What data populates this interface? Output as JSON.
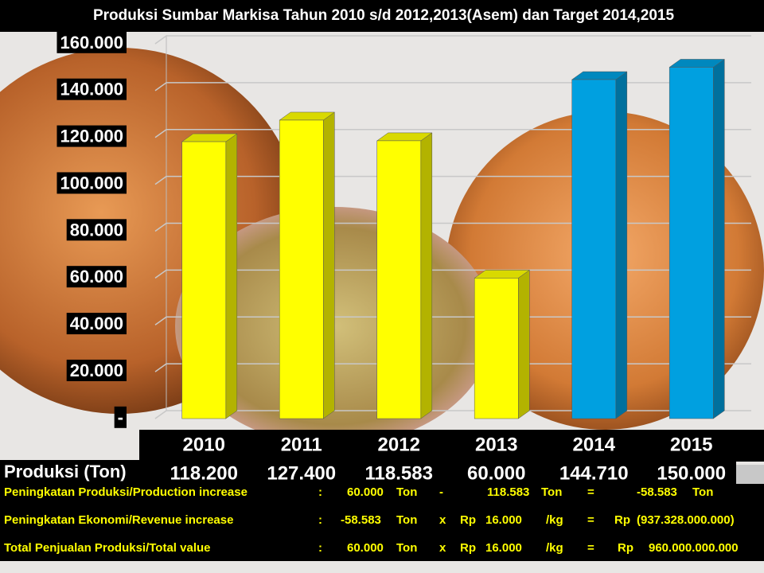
{
  "chart_data": {
    "type": "bar3d",
    "title": "Produksi Sumbar Markisa Tahun 2010 s/d 2012,2013(Asem)  dan Target  2014,2015",
    "categories": [
      "2010",
      "2011",
      "2012",
      "2013",
      "2014",
      "2015"
    ],
    "values": [
      118200,
      127400,
      118583,
      60000,
      144710,
      150000
    ],
    "value_labels": [
      "118.200",
      "127.400",
      "118.583",
      "60.000",
      "144.710",
      "150.000"
    ],
    "colors": [
      "#ffff00",
      "#ffff00",
      "#ffff00",
      "#ffff00",
      "#00a0e0",
      "#00a0e0"
    ],
    "row_label": "Produksi (Ton)",
    "ylim": [
      0,
      160000
    ],
    "yticks": [
      {
        "value": 0,
        "label": "-"
      },
      {
        "value": 20000,
        "label": "20.000"
      },
      {
        "value": 40000,
        "label": "40.000"
      },
      {
        "value": 60000,
        "label": "60.000"
      },
      {
        "value": 80000,
        "label": "80.000"
      },
      {
        "value": 100000,
        "label": "100.000"
      },
      {
        "value": 120000,
        "label": "120.000"
      },
      {
        "value": 140000,
        "label": "140.000"
      },
      {
        "value": 160000,
        "label": "160.000"
      }
    ],
    "grid": true
  },
  "summary": {
    "rows": [
      [
        "Peningkatan Produksi/Production increase",
        ":",
        "60.000",
        "Ton",
        "-",
        "118.583",
        "Ton",
        "=",
        "-58.583",
        "Ton"
      ],
      [
        "Peningkatan Ekonomi/Revenue increase",
        ":",
        "-58.583",
        "Ton",
        "x",
        "Rp",
        "16.000",
        "/kg",
        "=",
        "Rp",
        "(937.328.000.000)"
      ],
      [
        "Total Penjualan Produksi/Total  value",
        ":",
        "60.000",
        "Ton",
        "x",
        "Rp",
        "16.000",
        "/kg",
        "=",
        "Rp",
        "960.000.000.000"
      ]
    ]
  }
}
